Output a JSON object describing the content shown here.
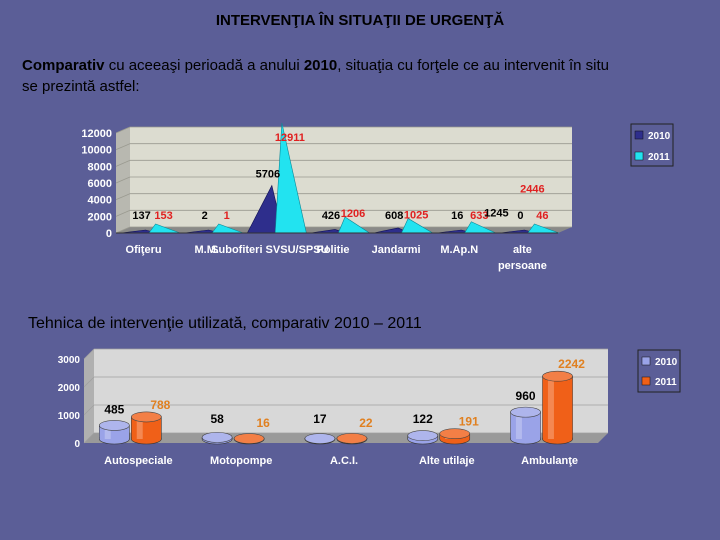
{
  "slide": {
    "title": "INTERVENŢIA ÎN SITUAŢII DE URGENŢĂ",
    "intro_bold_1": "Comparativ",
    "intro_1": " cu aceeaşi perioadă a anului ",
    "intro_bold_2": "2010",
    "intro_2": ", situaţia cu forţele ce au intervenit în situ",
    "intro_line2": " se prezintă astfel:",
    "subtitle2": "Tehnica de intervenţie utilizată, comparativ   2010 –  2011"
  },
  "colors": {
    "series2010_chart1": "#2e2e8c",
    "series2011_chart1": "#22e3f0",
    "series2010_chart2": "#9aa3e8",
    "series2011_chart2": "#f06018",
    "label2011_chart1": "#e02020",
    "label2011_chart2": "#e08020"
  },
  "chart_data": [
    {
      "type": "area",
      "title": "",
      "categories": [
        "Ofiţeru",
        "M.M.",
        "Subofiteri SVSU/SPSU",
        "Politie",
        "Jandarmi",
        "M.Ap.N",
        "alte persoane"
      ],
      "category_lines": [
        [
          "Ofiţeru"
        ],
        [
          "M.M."
        ],
        [
          "Subofiteri SVSU/SPSU"
        ],
        [
          "Politie"
        ],
        [
          "Jandarmi"
        ],
        [
          "M.Ap.N"
        ],
        [
          "alte",
          "persoane"
        ]
      ],
      "series": [
        {
          "name": "2010",
          "values": [
            137,
            2,
            5706,
            426,
            608,
            16,
            0
          ]
        },
        {
          "name": "2011",
          "values": [
            153,
            1,
            12911,
            1206,
            1025,
            633,
            46
          ]
        }
      ],
      "extra_labels": [
        {
          "category": "alte persoane",
          "values": [
            1245,
            2446
          ]
        }
      ],
      "yticks": [
        0,
        2000,
        4000,
        6000,
        8000,
        10000,
        12000
      ],
      "ylim": [
        0,
        12000
      ],
      "grid": true,
      "legend": "top-right"
    },
    {
      "type": "bar",
      "title": "",
      "categories": [
        "Autospeciale",
        "Motopompe",
        "A.C.I.",
        "Alte utilaje",
        "Ambulanţe"
      ],
      "series": [
        {
          "name": "2010",
          "values": [
            485,
            58,
            17,
            122,
            960
          ]
        },
        {
          "name": "2011",
          "values": [
            788,
            16,
            22,
            191,
            2242
          ]
        }
      ],
      "yticks": [
        0,
        1000,
        2000,
        3000
      ],
      "ylim": [
        0,
        3000
      ],
      "grid": true,
      "legend": "top-right"
    }
  ]
}
